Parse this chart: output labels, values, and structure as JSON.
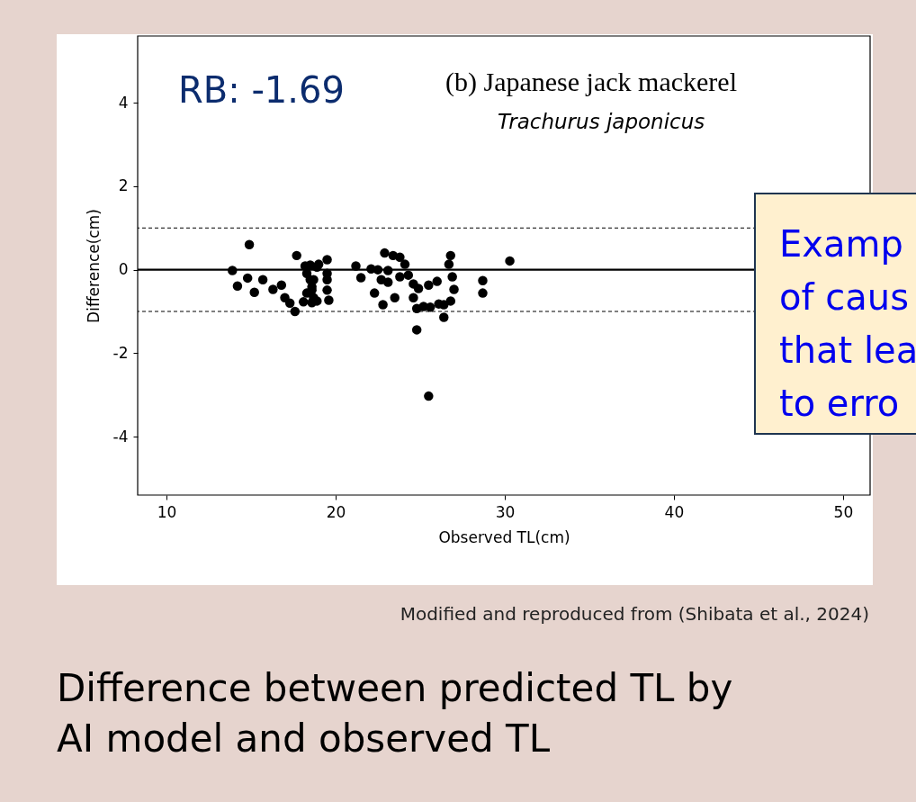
{
  "chart_data": {
    "type": "scatter",
    "title": "(b) Japanese jack mackerel",
    "subtitle": "Trachurus japonicus",
    "xlabel": "Observed TL(cm)",
    "ylabel": "Difference(cm)",
    "x": [
      13.9,
      14.2,
      14.9,
      14.8,
      15.2,
      15.7,
      16.3,
      16.8,
      17.0,
      17.3,
      17.6,
      17.7,
      18.2,
      18.3,
      18.5,
      18.6,
      18.3,
      18.7,
      18.1,
      18.6,
      18.9,
      18.7,
      18.6,
      18.9,
      18.5,
      19.0,
      19.5,
      19.5,
      19.5,
      19.5,
      19.6,
      21.2,
      21.5,
      22.1,
      22.5,
      22.9,
      23.4,
      23.8,
      22.3,
      22.8,
      22.7,
      23.5,
      23.1,
      24.1,
      24.3,
      24.6,
      24.9,
      24.6,
      24.8,
      24.8,
      25.2,
      25.5,
      26.0,
      25.6,
      26.1,
      26.4,
      26.4,
      26.8,
      26.7,
      26.9,
      27.0,
      26.8,
      28.7,
      28.7,
      30.3,
      25.5,
      23.1,
      23.8
    ],
    "values": [
      -0.02,
      -0.39,
      0.6,
      -0.2,
      -0.54,
      -0.24,
      -0.47,
      -0.37,
      -0.67,
      -0.8,
      -1.0,
      0.34,
      0.09,
      -0.09,
      -0.24,
      -0.41,
      -0.56,
      -0.67,
      -0.77,
      -0.79,
      0.06,
      -0.24,
      -0.49,
      -0.75,
      0.11,
      0.13,
      0.24,
      -0.09,
      -0.24,
      -0.49,
      -0.73,
      0.09,
      -0.19,
      0.02,
      0.0,
      0.4,
      0.34,
      0.3,
      -0.56,
      -0.84,
      -0.24,
      -0.67,
      -0.3,
      0.13,
      -0.13,
      -0.34,
      -0.45,
      -0.67,
      -0.93,
      -1.44,
      -0.88,
      -0.37,
      -0.28,
      -0.9,
      -0.82,
      -1.14,
      -0.84,
      0.34,
      0.13,
      -0.17,
      -0.47,
      -0.75,
      -0.26,
      -0.56,
      0.21,
      -3.03,
      -0.02,
      -0.17
    ],
    "color": "#000000",
    "marker": "circle",
    "grid": false,
    "xlim": [
      8.3,
      51.6
    ],
    "ylim": [
      -5.4,
      5.6
    ],
    "xticks": [
      10,
      20,
      30,
      40,
      50
    ],
    "yticks": [
      -4,
      -2,
      0,
      2,
      4
    ],
    "ref_lines": [
      {
        "axis": "y",
        "value": 0,
        "line_style": "solid",
        "color": "#000000"
      },
      {
        "axis": "y",
        "value": 1,
        "line_style": "dashed",
        "color": "#000000"
      },
      {
        "axis": "y",
        "value": -1,
        "line_style": "dashed",
        "color": "#000000"
      }
    ],
    "annotations": [
      "RB: -1.69",
      "Examp\nof caus\nthat lea\nto erro",
      "Modified and reproduced from (Shibata et al., 2024)",
      "Difference between predicted TL by\nAI model and observed TL"
    ]
  }
}
